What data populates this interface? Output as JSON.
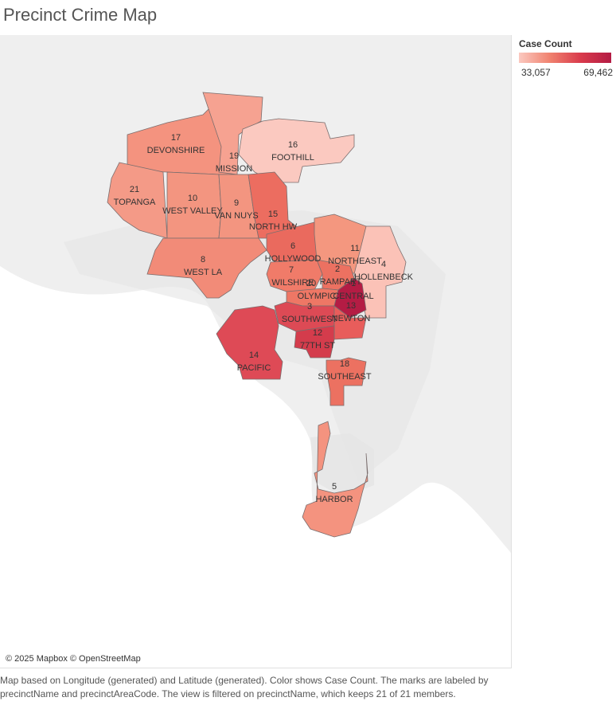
{
  "title": "Precinct Crime Map",
  "legend": {
    "title": "Case Count",
    "min": "33,057",
    "max": "69,462"
  },
  "attribution": "© 2025 Mapbox © OpenStreetMap",
  "caption": "Map based on Longitude (generated) and Latitude (generated).  Color shows Case Count.  The marks are labeled by precinctName and precinctAreaCode. The view is filtered on precinctName, which keeps 21 of 21 members.",
  "colors": {
    "ocean": "#ffffff",
    "land": "#efefef",
    "urban": "#e3e3e3",
    "legend_low": "#fbc9c0",
    "legend_high": "#b41c44"
  },
  "precincts": [
    {
      "code": "17",
      "name": "DEVONSHIRE",
      "color": "#f4937f"
    },
    {
      "code": "19",
      "name": "MISSION",
      "color": "#f6a291"
    },
    {
      "code": "16",
      "name": "FOOTHILL",
      "color": "#fbc9c0"
    },
    {
      "code": "21",
      "name": "TOPANGA",
      "color": "#f49a87"
    },
    {
      "code": "10",
      "name": "WEST VALLEY",
      "color": "#f39580"
    },
    {
      "code": "9",
      "name": "VAN NUYS",
      "color": "#f39580"
    },
    {
      "code": "15",
      "name": "NORTH HW",
      "color": "#ec6d60"
    },
    {
      "code": "8",
      "name": "WEST LA",
      "color": "#f28b78"
    },
    {
      "code": "6",
      "name": "HOLLYWOOD",
      "color": "#ea6a5e"
    },
    {
      "code": "11",
      "name": "NORTHEAST",
      "color": "#f4977f"
    },
    {
      "code": "4",
      "name": "HOLLENBECK",
      "color": "#fbc2b7"
    },
    {
      "code": "7",
      "name": "WILSHIRE",
      "color": "#f07b69"
    },
    {
      "code": "2",
      "name": "RAMPART",
      "color": "#ec7161"
    },
    {
      "code": "20",
      "name": "OLYMPIC",
      "color": "#ee7765"
    },
    {
      "code": "1",
      "name": "CENTRAL",
      "color": "#b41c44"
    },
    {
      "code": "3",
      "name": "SOUTHWEST",
      "color": "#dd4a55"
    },
    {
      "code": "13",
      "name": "NEWTON",
      "color": "#e85d5b"
    },
    {
      "code": "12",
      "name": "77TH ST",
      "color": "#d43c4c"
    },
    {
      "code": "14",
      "name": "PACIFIC",
      "color": "#de4a56"
    },
    {
      "code": "18",
      "name": "SOUTHEAST",
      "color": "#ec7161"
    },
    {
      "code": "5",
      "name": "HARBOR",
      "color": "#f4937f"
    }
  ]
}
